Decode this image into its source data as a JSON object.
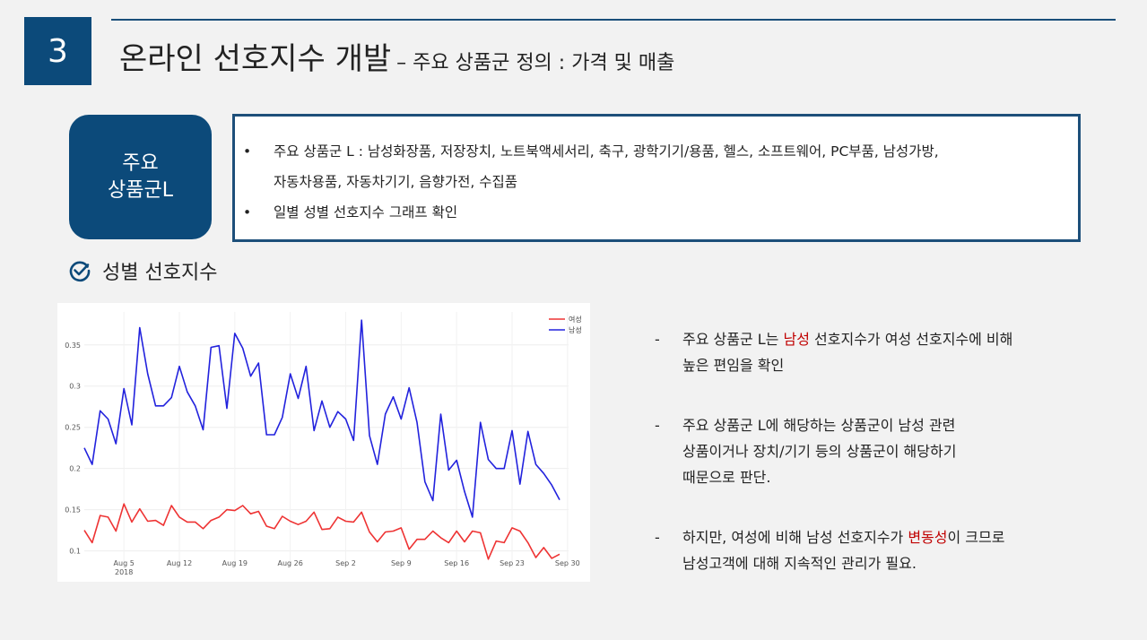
{
  "header": {
    "section_number": "3",
    "title": "온라인 선호지수 개발",
    "subtitle": "– 주요 상품군 정의 : 가격 및 매출"
  },
  "category_badge": {
    "line1": "주요",
    "line2": "상품군L"
  },
  "info": {
    "bullet_char": "•",
    "items": [
      "주요 상품군 L : 남성화장품, 저장장치, 노트북액세서리, 축구, 광학기기/용품, 헬스, 소프트웨어, PC부품, 남성가방,",
      "자동차용품, 자동차기기, 음향가전, 수집품",
      "일별 성별 선호지수 그래프 확인"
    ]
  },
  "section_heading": {
    "icon": "check-circle-icon",
    "label": "성별 선호지수"
  },
  "colors": {
    "accent": "#0c4a7a",
    "female": "#ee3333",
    "male": "#2222dd",
    "highlight": "#c00000"
  },
  "chart_data": {
    "type": "line",
    "x_tick_labels": [
      "Aug 5",
      "Aug 12",
      "Aug 19",
      "Aug 26",
      "Sep 2",
      "Sep 9",
      "Sep 16",
      "Sep 23",
      "Sep 30"
    ],
    "x_year_label": "2018",
    "y_ticks": [
      0.1,
      0.15,
      0.2,
      0.25,
      0.3,
      0.35
    ],
    "ylim": [
      0.08,
      0.39
    ],
    "legend_position": "top-right",
    "series": [
      {
        "name": "여성",
        "color": "#ee3333",
        "values": [
          0.125,
          0.11,
          0.143,
          0.141,
          0.124,
          0.157,
          0.135,
          0.151,
          0.136,
          0.137,
          0.131,
          0.155,
          0.141,
          0.135,
          0.135,
          0.127,
          0.137,
          0.141,
          0.15,
          0.149,
          0.155,
          0.145,
          0.148,
          0.13,
          0.127,
          0.142,
          0.136,
          0.132,
          0.136,
          0.147,
          0.126,
          0.127,
          0.141,
          0.136,
          0.135,
          0.147,
          0.123,
          0.111,
          0.123,
          0.124,
          0.128,
          0.102,
          0.114,
          0.114,
          0.124,
          0.116,
          0.11,
          0.124,
          0.111,
          0.124,
          0.122,
          0.09,
          0.112,
          0.11,
          0.128,
          0.124,
          0.11,
          0.092,
          0.104,
          0.091,
          0.096
        ]
      },
      {
        "name": "남성",
        "color": "#2222dd",
        "values": [
          0.225,
          0.205,
          0.27,
          0.26,
          0.23,
          0.297,
          0.253,
          0.371,
          0.315,
          0.276,
          0.276,
          0.286,
          0.324,
          0.293,
          0.276,
          0.247,
          0.347,
          0.349,
          0.273,
          0.364,
          0.346,
          0.312,
          0.328,
          0.241,
          0.241,
          0.262,
          0.315,
          0.285,
          0.324,
          0.246,
          0.282,
          0.25,
          0.269,
          0.26,
          0.234,
          0.38,
          0.24,
          0.205,
          0.266,
          0.287,
          0.26,
          0.298,
          0.256,
          0.184,
          0.161,
          0.266,
          0.198,
          0.21,
          0.172,
          0.141,
          0.256,
          0.211,
          0.2,
          0.2,
          0.246,
          0.181,
          0.245,
          0.205,
          0.194,
          0.18,
          0.162
        ]
      }
    ]
  },
  "notes": {
    "dash": "-",
    "note1": {
      "pre": "주요 상품군 L는 ",
      "highlight": "남성",
      "post": " 선호지수가 여성 선호지수에 비해",
      "line2": "높은 편임을 확인"
    },
    "note2": {
      "line1": "주요 상품군 L에 해당하는 상품군이 남성 관련",
      "line2": "상품이거나 장치/기기 등의 상품군이 해당하기",
      "line3": "때문으로 판단."
    },
    "note3": {
      "pre": "하지만, 여성에 비해 남성 선호지수가 ",
      "highlight": "변동성",
      "post": "이 크므로",
      "line2": "남성고객에 대해 지속적인 관리가 필요."
    }
  }
}
